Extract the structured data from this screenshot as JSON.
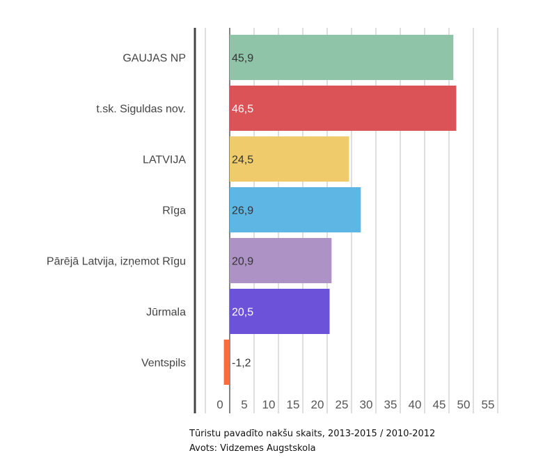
{
  "chart_data": {
    "type": "bar",
    "orientation": "horizontal",
    "categories": [
      "GAUJAS NP",
      "t.sk. Siguldas nov.",
      "LATVIJA",
      "Rīga",
      "Pārējā Latvija, izņemot Rīgu",
      "Jūrmala",
      "Ventspils"
    ],
    "values": [
      45.9,
      46.5,
      24.5,
      26.9,
      20.9,
      20.5,
      -1.2
    ],
    "value_labels": [
      "45,9",
      "46,5",
      "24,5",
      "26,9",
      "20,9",
      "20,5",
      "-1,2"
    ],
    "colors": [
      "#8fc4a8",
      "#dc5357",
      "#efcb6c",
      "#5db6e4",
      "#ad92c6",
      "#6b52d8",
      "#fe6a3a"
    ],
    "label_colors": [
      "#333333",
      "#ffffff",
      "#333333",
      "#333333",
      "#333333",
      "#ffffff",
      "#333333"
    ],
    "xlim": [
      -5,
      55
    ],
    "xticks": [
      0,
      5,
      10,
      15,
      20,
      25,
      30,
      35,
      40,
      45,
      50,
      55
    ],
    "grid": true,
    "title": "",
    "xlabel": "",
    "ylabel": ""
  },
  "caption": {
    "line1": "Tūristu pavadīto nakšu skaits, 2013-2015 / 2010-2012",
    "line2": "Avots: Vidzemes Augstskola"
  }
}
